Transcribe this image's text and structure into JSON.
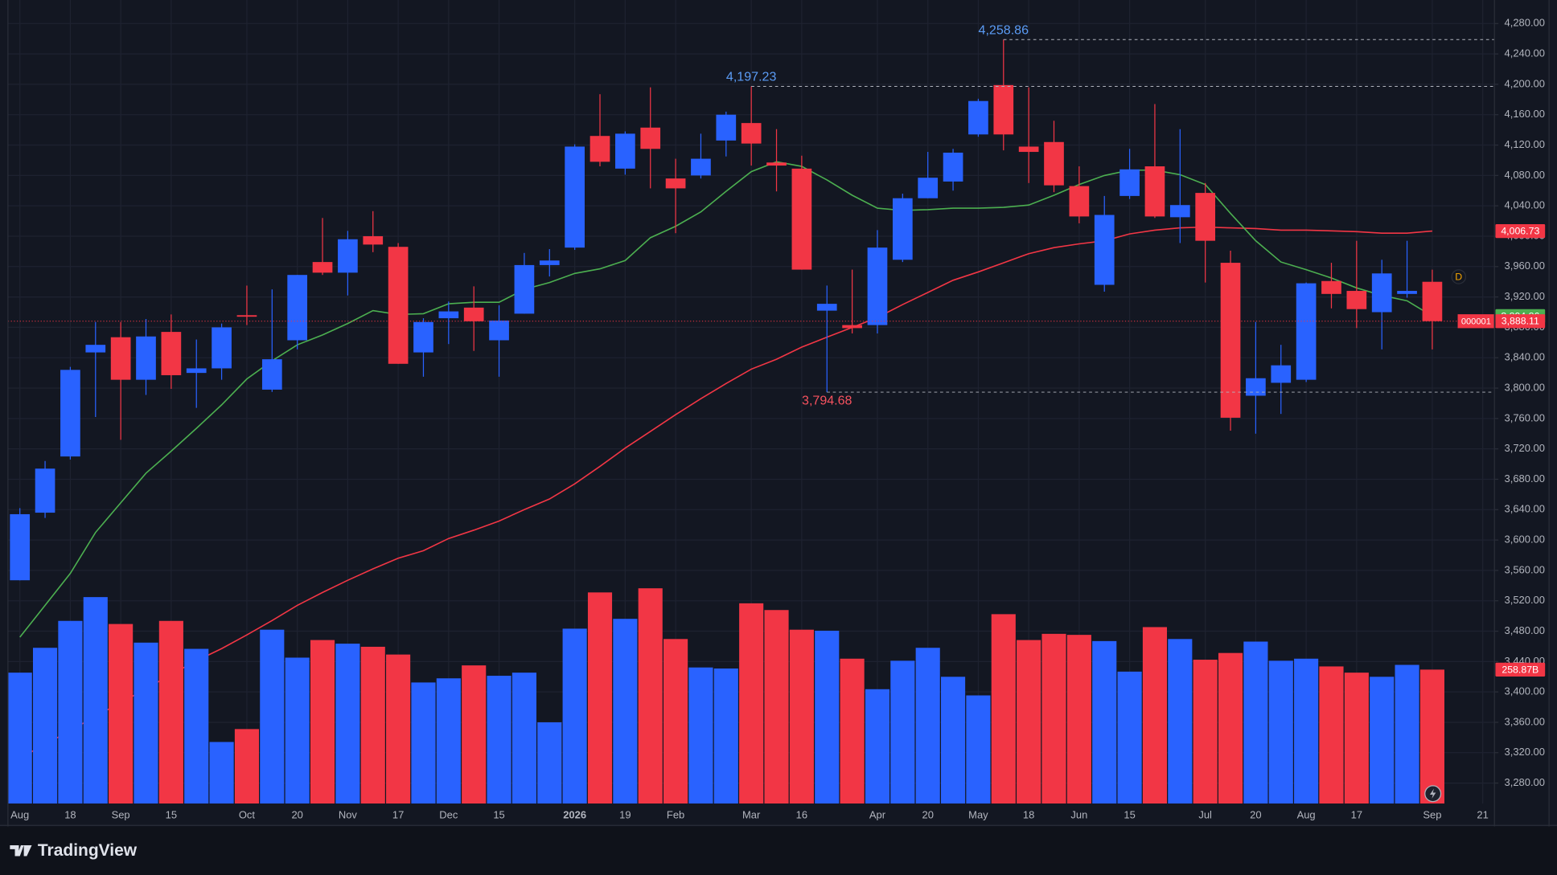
{
  "chart_data": {
    "type": "candlestick",
    "categories": [
      "Aug",
      null,
      "18",
      null,
      "Sep",
      null,
      "15",
      null,
      null,
      "Oct",
      null,
      "20",
      null,
      "Nov",
      null,
      "17",
      null,
      "Dec",
      null,
      "15",
      null,
      null,
      "2026",
      null,
      "19",
      null,
      "Feb",
      null,
      null,
      "Mar",
      null,
      "16",
      null,
      null,
      "Apr",
      null,
      "20",
      null,
      "May",
      null,
      "18",
      null,
      "Jun",
      null,
      "15",
      null,
      null,
      "Jul",
      null,
      "20",
      null,
      "Aug",
      null,
      "17",
      null,
      null,
      "Sep",
      null,
      "21"
    ],
    "open": [
      3547,
      3636,
      3710,
      3847,
      3867,
      3811,
      3874,
      3820,
      3826,
      3896,
      3798,
      3863,
      3966,
      3952,
      4000,
      3986,
      3847,
      3892,
      3906,
      3863,
      3898,
      3962,
      3985,
      4132,
      4089,
      4143,
      4076,
      4080,
      4126,
      4149,
      4097,
      4089,
      3902,
      3883,
      3883,
      3969,
      4050,
      4072,
      4134,
      4199,
      4118,
      4124,
      4066,
      3936,
      4053,
      4092,
      4025,
      4057,
      3965,
      3790,
      3807,
      3811,
      3941,
      3928,
      3900,
      3924,
      3940,
      null,
      null
    ],
    "high": [
      3642,
      3704,
      3828,
      3887,
      3887,
      3891,
      3897,
      3864,
      3885,
      3935,
      3930,
      3949,
      4024,
      4007,
      4033,
      3991,
      3892,
      3914,
      3934,
      3909,
      3978,
      3983,
      4121,
      4187,
      4138,
      4196,
      4102,
      4135,
      4164,
      4197.23,
      4141,
      4106,
      3935,
      3956,
      4008,
      4056,
      4111,
      4115,
      4181,
      4258.86,
      4196,
      4152,
      4092,
      4053,
      4115,
      4174,
      4141,
      4070,
      3981,
      3887,
      3857,
      3939,
      3965,
      3994,
      3969,
      3994,
      3956,
      null,
      null
    ],
    "low": [
      3547,
      3629,
      3706,
      3762,
      3732,
      3791,
      3799,
      3774,
      3811,
      3883,
      3795,
      3851,
      3949,
      3922,
      3979,
      3832,
      3815,
      3858,
      3849,
      3815,
      3898,
      3947,
      3982,
      4092,
      4081,
      4063,
      4004,
      4076,
      4105,
      4093,
      4059,
      3956,
      3794.68,
      3872,
      3872,
      3966,
      4050,
      4060,
      4131,
      4113,
      4070,
      4058,
      4017,
      3927,
      4049,
      4024,
      3991,
      3939,
      3744,
      3740,
      3766,
      3808,
      3905,
      3879,
      3851,
      3919,
      3851,
      null,
      null
    ],
    "close": [
      3634,
      3694,
      3824,
      3857,
      3811,
      3868,
      3817,
      3826,
      3880,
      3894,
      3838,
      3949,
      3952,
      3996,
      3989,
      3832,
      3887,
      3901,
      3888,
      3889,
      3962,
      3968,
      4118,
      4098,
      4135,
      4115,
      4063,
      4102,
      4160,
      4122,
      4093,
      3956,
      3911,
      3879,
      3985,
      4050,
      4077,
      4110,
      4178,
      4134,
      4111,
      4067,
      4026,
      4028,
      4088,
      4026,
      4041,
      3994,
      3761,
      3813,
      3830,
      3938,
      3924,
      3904,
      3951,
      3928,
      3888.11,
      null,
      null
    ],
    "close_last_label": "3,888.11",
    "countdown": "000001",
    "volume": [
      253,
      301,
      353,
      399,
      347,
      311,
      353,
      299,
      119,
      144,
      336,
      282,
      316,
      309,
      303,
      288,
      234,
      242,
      267,
      247,
      253,
      157,
      338,
      408,
      357,
      416,
      318,
      263,
      261,
      387,
      374,
      336,
      334,
      280,
      221,
      276,
      301,
      245,
      209,
      366,
      316,
      328,
      326,
      314,
      255,
      341,
      318,
      278,
      291,
      313,
      276,
      280,
      265,
      253,
      245,
      268,
      258.87,
      null,
      null
    ],
    "volume_last_label": "258.87B",
    "up_color": "#2962ff",
    "down_color": "#f23645",
    "sma_fast": {
      "color": "#4caf50",
      "last_label": "3,894.86",
      "values": [
        3472,
        3514,
        3556,
        3610,
        3649,
        3688,
        3717,
        3747,
        3778,
        3812,
        3836,
        3857,
        3870,
        3885,
        3902,
        3897,
        3898,
        3911,
        3913,
        3913,
        3930,
        3939,
        3951,
        3957,
        3968,
        3998,
        4013,
        4032,
        4059,
        4085,
        4098,
        4092,
        4074,
        4054,
        4037,
        4034,
        4035,
        4037,
        4037,
        4038,
        4041,
        4054,
        4068,
        4080,
        4087,
        4087,
        4081,
        4068,
        4030,
        3994,
        3966,
        3956,
        3945,
        3932,
        3922,
        3915,
        3894.86,
        null,
        null
      ]
    },
    "sma_slow": {
      "color": "#f23645",
      "last_label": "4,006.73",
      "values": [
        3313,
        3331,
        3349,
        3368,
        3386,
        3404,
        3423,
        3441,
        3457,
        3475,
        3494,
        3514,
        3531,
        3547,
        3562,
        3576,
        3586,
        3602,
        3613,
        3625,
        3640,
        3654,
        3674,
        3697,
        3721,
        3743,
        3765,
        3786,
        3806,
        3825,
        3838,
        3854,
        3867,
        3880,
        3893,
        3910,
        3926,
        3942,
        3953,
        3965,
        3977,
        3985,
        3990,
        3994,
        4003,
        4008,
        4011,
        4012,
        4011,
        4010,
        4008,
        4008,
        4007,
        4006,
        4004,
        4004,
        4006.73,
        null,
        null
      ]
    },
    "annotations": [
      {
        "value": 4258.86,
        "label": "4,258.86",
        "color": "#5b9cf6"
      },
      {
        "value": 4197.23,
        "label": "4,197.23",
        "color": "#5b9cf6"
      },
      {
        "value": 3794.68,
        "label": "3,794.68",
        "color": "#f7525f"
      }
    ],
    "marker": "D",
    "ylim": [
      3253,
      4311
    ],
    "yticks": [
      {
        "value": 3280,
        "label": "3,280.00"
      },
      {
        "value": 3320,
        "label": "3,320.00"
      },
      {
        "value": 3360,
        "label": "3,360.00"
      },
      {
        "value": 3400,
        "label": "3,400.00"
      },
      {
        "value": 3440,
        "label": "3,440.00"
      },
      {
        "value": 3480,
        "label": "3,480.00"
      },
      {
        "value": 3520,
        "label": "3,520.00"
      },
      {
        "value": 3560,
        "label": "3,560.00"
      },
      {
        "value": 3600,
        "label": "3,600.00"
      },
      {
        "value": 3640,
        "label": "3,640.00"
      },
      {
        "value": 3680,
        "label": "3,680.00"
      },
      {
        "value": 3720,
        "label": "3,720.00"
      },
      {
        "value": 3760,
        "label": "3,760.00"
      },
      {
        "value": 3800,
        "label": "3,800.00"
      },
      {
        "value": 3840,
        "label": "3,840.00"
      },
      {
        "value": 3880,
        "label": "3,880.00"
      },
      {
        "value": 3920,
        "label": "3,920.00"
      },
      {
        "value": 3960,
        "label": "3,960.00"
      },
      {
        "value": 4000,
        "label": "4,000.00"
      },
      {
        "value": 4040,
        "label": "4,040.00"
      },
      {
        "value": 4080,
        "label": "4,080.00"
      },
      {
        "value": 4120,
        "label": "4,120.00"
      },
      {
        "value": 4160,
        "label": "4,160.00"
      },
      {
        "value": 4200,
        "label": "4,200.00"
      },
      {
        "value": 4240,
        "label": "4,240.00"
      },
      {
        "value": 4280,
        "label": "4,280.00"
      }
    ],
    "grid": true
  },
  "brand": "TradingView"
}
